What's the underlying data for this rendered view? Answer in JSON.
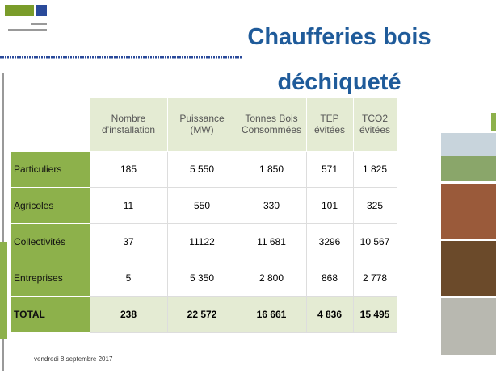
{
  "header": {
    "title": "Chaufferies bois déchiqueté"
  },
  "table": {
    "columns": [
      "Nombre d’installation",
      "Puissance (MW)",
      "Tonnes Bois Consommées",
      "TEP évitées",
      "TCO2 évitées"
    ],
    "rows": [
      [
        "Particuliers",
        "185",
        "5 550",
        "1 850",
        "571",
        "1 825"
      ],
      [
        "Agricoles",
        "11",
        "550",
        "330",
        "101",
        "325"
      ],
      [
        "Collectivités",
        "37",
        "11122",
        "11 681",
        "3296",
        "10 567"
      ],
      [
        "Entreprises",
        "5",
        "5 350",
        "2 800",
        "868",
        "2 778"
      ],
      [
        "TOTAL",
        "238",
        "22 572",
        "16 661",
        "4 836",
        "15 495"
      ]
    ]
  },
  "footer": {
    "date": "vendredi 8 septembre 2017"
  }
}
